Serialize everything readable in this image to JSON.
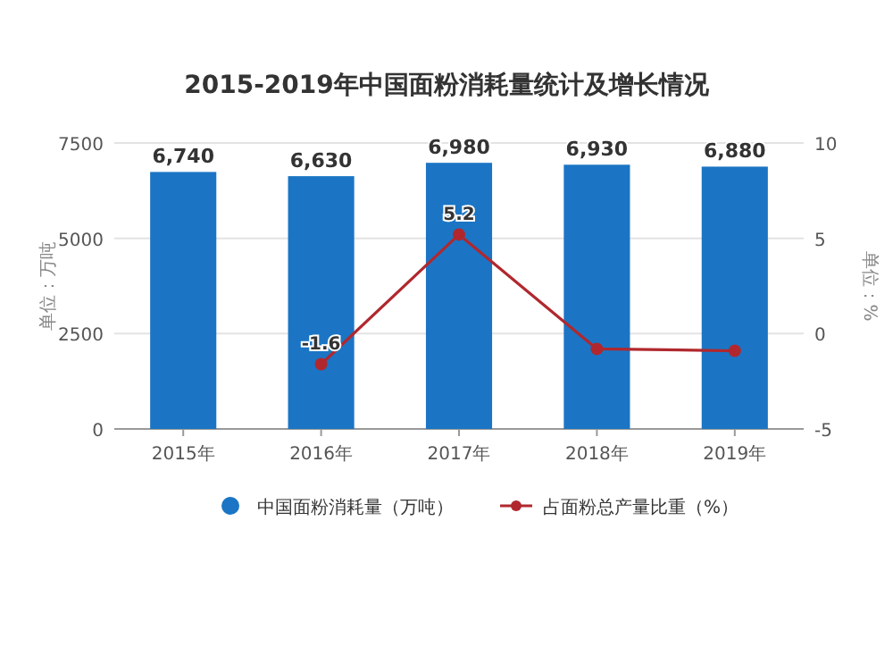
{
  "chart_data": {
    "type": "bar",
    "title": "2015-2019年中国面粉消耗量统计及增长情况",
    "ylabel": "单位：万吨",
    "y2label": "单位：%",
    "categories": [
      "2015年",
      "2016年",
      "2017年",
      "2018年",
      "2019年"
    ],
    "series": [
      {
        "name": "中国面粉消耗量（万吨）",
        "type": "bar",
        "color": "#1b75c4",
        "values": [
          6740,
          6630,
          6980,
          6930,
          6880
        ],
        "value_labels": [
          "6,740",
          "6,630",
          "6,980",
          "6,930",
          "6,880"
        ]
      },
      {
        "name": "占面粉总产量比重（%）",
        "type": "line",
        "axis": "y2",
        "color": "#b0282e",
        "marker": "circle",
        "values": [
          null,
          -1.6,
          5.2,
          -0.8,
          -0.9
        ],
        "value_labels": [
          null,
          "-1.6",
          "5.2",
          null,
          null
        ]
      }
    ],
    "ylim": [
      0,
      7500
    ],
    "yticks": [
      0,
      2500,
      5000,
      7500
    ],
    "y2lim": [
      -5,
      10
    ],
    "y2ticks": [
      -5,
      0,
      5,
      10
    ],
    "grid": "y",
    "legend": "bottom"
  }
}
